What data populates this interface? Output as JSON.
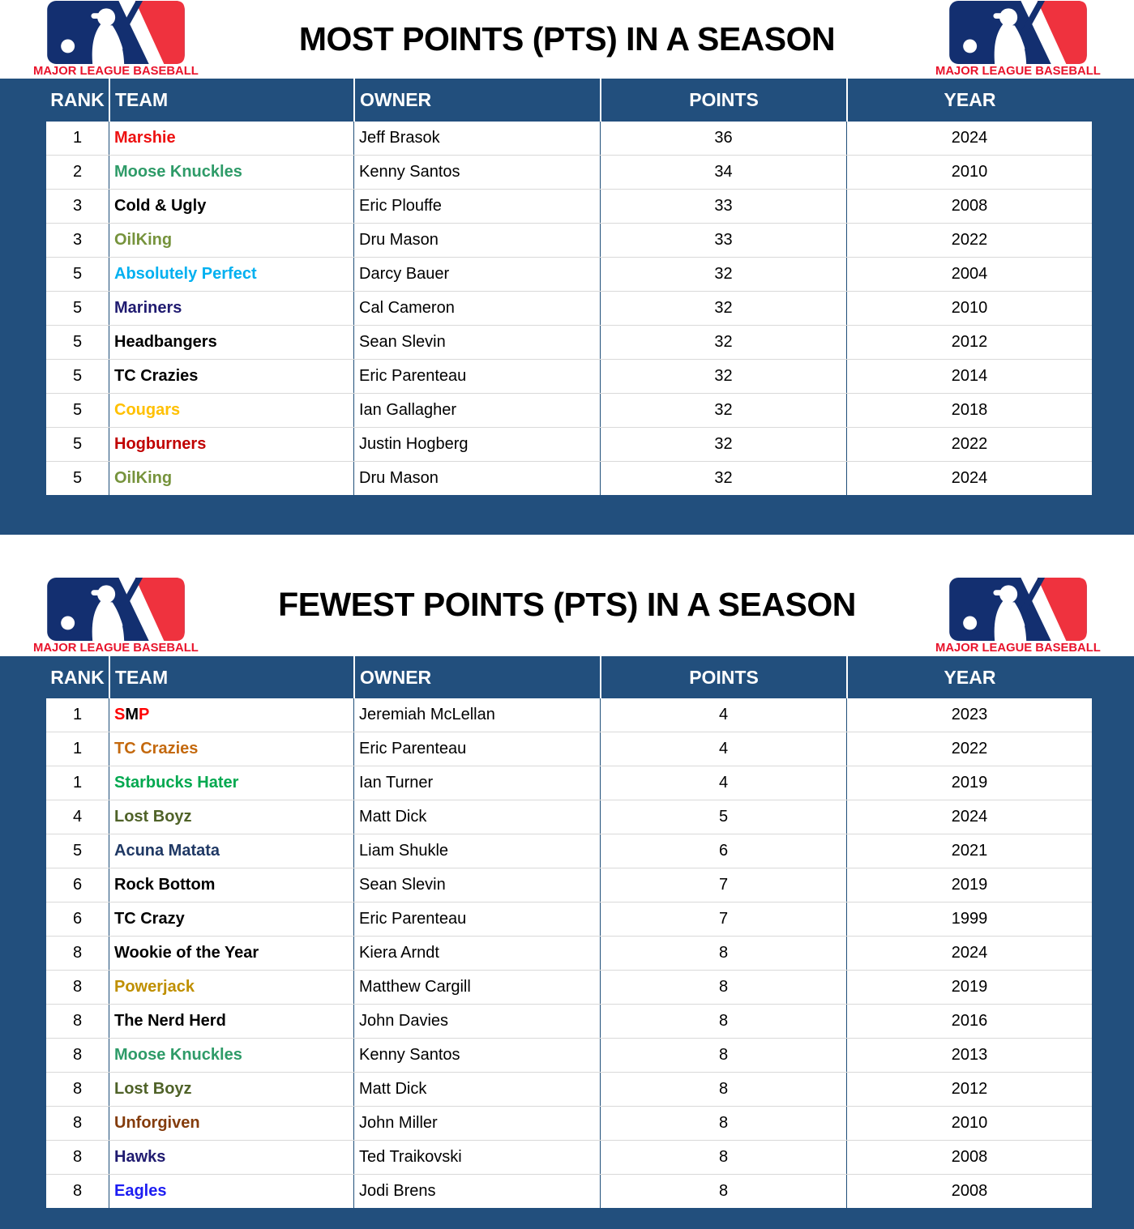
{
  "page": {
    "background": "#224F7D"
  },
  "logo": {
    "wordmark": "MAJOR LEAGUE BASEBALL",
    "navy": "#132F70",
    "red": "#EF323E",
    "wordmark_color": "#E8132B"
  },
  "tables": [
    {
      "title": "MOST POINTS (PTS) IN A SEASON",
      "columns": [
        "RANK",
        "TEAM",
        "OWNER",
        "POINTS",
        "YEAR"
      ],
      "rows": [
        {
          "rank": "1",
          "team": "Marshie",
          "team_color": "#ED1111",
          "owner": "Jeff Brasok",
          "points": "36",
          "year": "2024"
        },
        {
          "rank": "2",
          "team": "Moose Knuckles",
          "team_color": "#2E9B68",
          "owner": "Kenny Santos",
          "points": "34",
          "year": "2010"
        },
        {
          "rank": "3",
          "team": "Cold & Ugly",
          "team_color": "#000000",
          "owner": "Eric Plouffe",
          "points": "33",
          "year": "2008"
        },
        {
          "rank": "3",
          "team": "OilKing",
          "team_color": "#76933C",
          "owner": "Dru Mason",
          "points": "33",
          "year": "2022"
        },
        {
          "rank": "5",
          "team": "Absolutely Perfect",
          "team_color": "#00B0F0",
          "owner": "Darcy Bauer",
          "points": "32",
          "year": "2004"
        },
        {
          "rank": "5",
          "team": "Mariners",
          "team_color": "#201B70",
          "owner": "Cal Cameron",
          "points": "32",
          "year": "2010"
        },
        {
          "rank": "5",
          "team": "Headbangers",
          "team_color": "#000000",
          "owner": "Sean Slevin",
          "points": "32",
          "year": "2012"
        },
        {
          "rank": "5",
          "team": "TC Crazies",
          "team_color": "#000000",
          "owner": "Eric Parenteau",
          "points": "32",
          "year": "2014"
        },
        {
          "rank": "5",
          "team": "Cougars",
          "team_color": "#FFC000",
          "owner": "Ian Gallagher",
          "points": "32",
          "year": "2018"
        },
        {
          "rank": "5",
          "team": "Hogburners",
          "team_color": "#C00000",
          "owner": "Justin Hogberg",
          "points": "32",
          "year": "2022"
        },
        {
          "rank": "5",
          "team": "OilKing",
          "team_color": "#76933C",
          "owner": "Dru Mason",
          "points": "32",
          "year": "2024"
        }
      ]
    },
    {
      "title": "FEWEST POINTS (PTS) IN A SEASON",
      "columns": [
        "RANK",
        "TEAM",
        "OWNER",
        "POINTS",
        "YEAR"
      ],
      "rows": [
        {
          "rank": "1",
          "team": "SMP",
          "team_segments": [
            {
              "text": "S",
              "color": "#FF0000"
            },
            {
              "text": "M",
              "color": "#000000"
            },
            {
              "text": "P",
              "color": "#FF0000"
            }
          ],
          "owner": "Jeremiah McLellan",
          "points": "4",
          "year": "2023"
        },
        {
          "rank": "1",
          "team": "TC Crazies",
          "team_color": "#C4690E",
          "owner": "Eric Parenteau",
          "points": "4",
          "year": "2022"
        },
        {
          "rank": "1",
          "team": "Starbucks Hater",
          "team_color": "#00A84F",
          "owner": "Ian Turner",
          "points": "4",
          "year": "2019"
        },
        {
          "rank": "4",
          "team": "Lost Boyz",
          "team_color": "#4F6228",
          "owner": "Matt Dick",
          "points": "5",
          "year": "2024"
        },
        {
          "rank": "5",
          "team": "Acuna Matata",
          "team_color": "#1F3864",
          "owner": "Liam Shukle",
          "points": "6",
          "year": "2021"
        },
        {
          "rank": "6",
          "team": "Rock Bottom",
          "team_color": "#000000",
          "owner": "Sean Slevin",
          "points": "7",
          "year": "2019"
        },
        {
          "rank": "6",
          "team": "TC Crazy",
          "team_color": "#000000",
          "owner": "Eric Parenteau",
          "points": "7",
          "year": "1999"
        },
        {
          "rank": "8",
          "team": "Wookie of the Year",
          "team_color": "#000000",
          "owner": "Kiera Arndt",
          "points": "8",
          "year": "2024"
        },
        {
          "rank": "8",
          "team": "Powerjack",
          "team_color": "#BF8F00",
          "owner": "Matthew Cargill",
          "points": "8",
          "year": "2019"
        },
        {
          "rank": "8",
          "team": "The Nerd Herd",
          "team_color": "#000000",
          "owner": "John Davies",
          "points": "8",
          "year": "2016"
        },
        {
          "rank": "8",
          "team": "Moose Knuckles",
          "team_color": "#2E9B68",
          "owner": "Kenny Santos",
          "points": "8",
          "year": "2013"
        },
        {
          "rank": "8",
          "team": "Lost Boyz",
          "team_color": "#4F6228",
          "owner": "Matt Dick",
          "points": "8",
          "year": "2012"
        },
        {
          "rank": "8",
          "team": "Unforgiven",
          "team_color": "#843C0C",
          "owner": "John Miller",
          "points": "8",
          "year": "2010"
        },
        {
          "rank": "8",
          "team": "Hawks",
          "team_color": "#201B70",
          "owner": "Ted Traikovski",
          "points": "8",
          "year": "2008"
        },
        {
          "rank": "8",
          "team": "Eagles",
          "team_color": "#1D1DF2",
          "owner": "Jodi Brens",
          "points": "8",
          "year": "2008"
        }
      ]
    }
  ]
}
